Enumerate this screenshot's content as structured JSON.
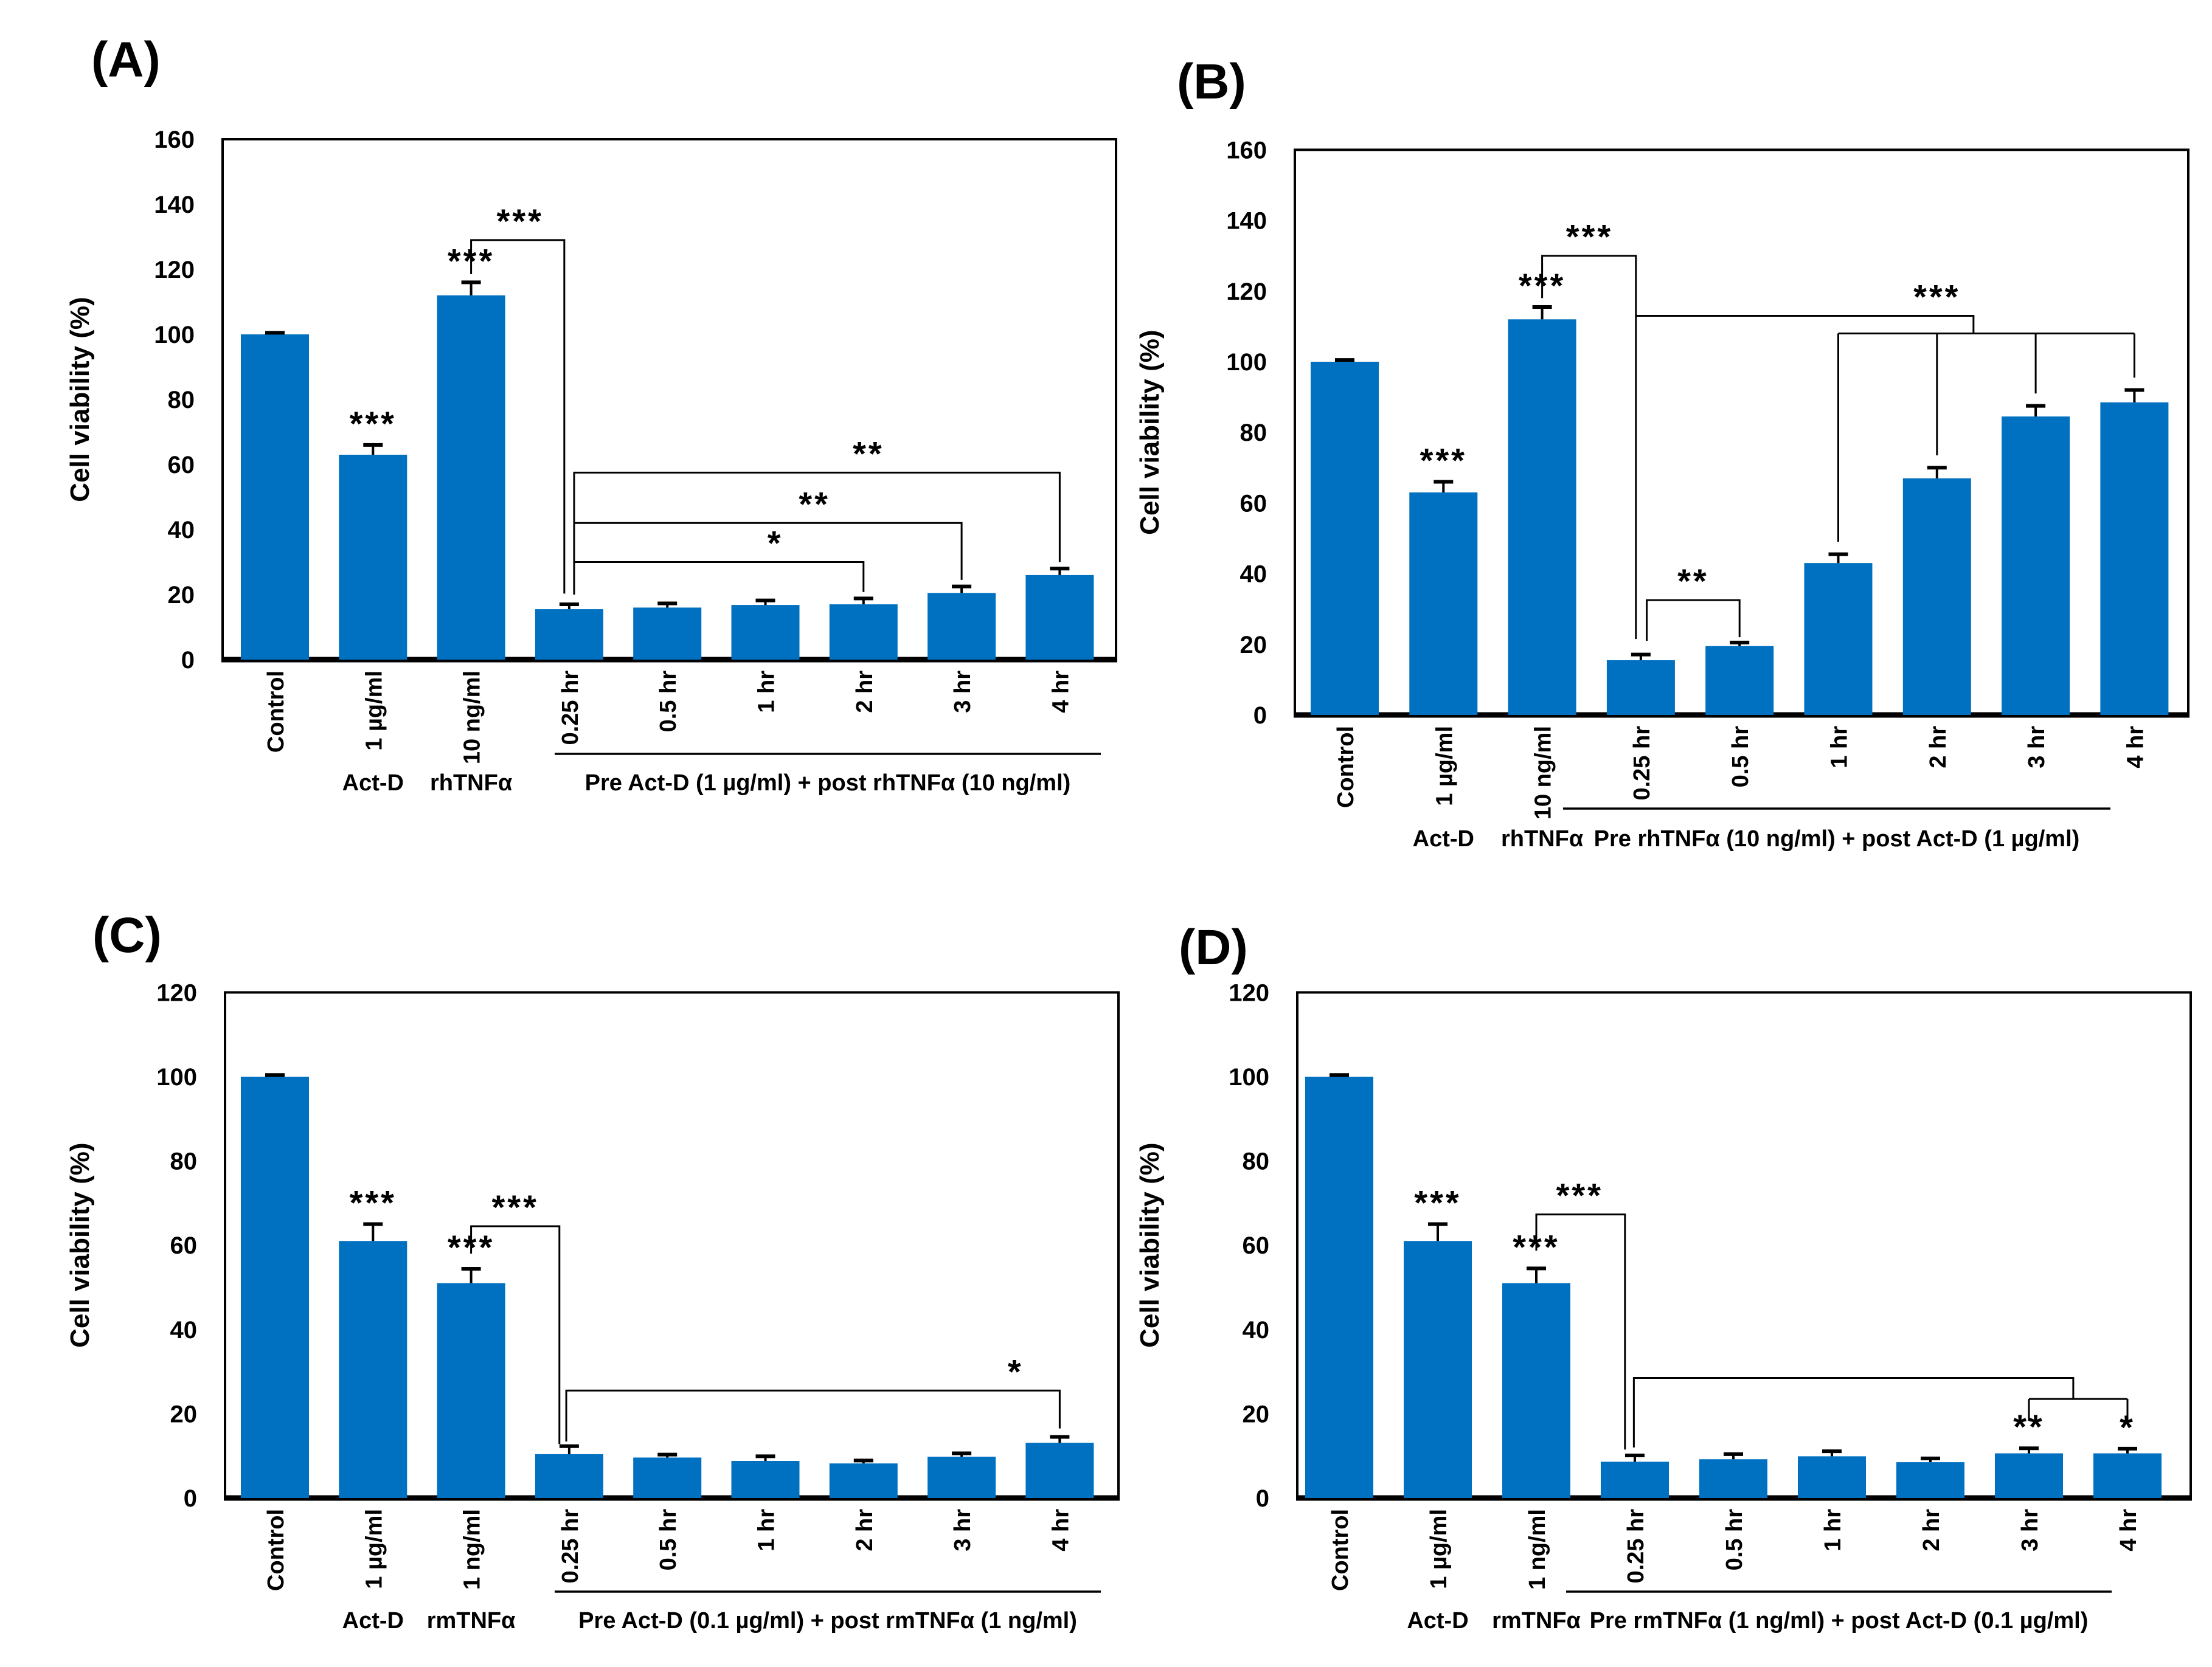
{
  "colors": {
    "bar": "#0070C0",
    "axis": "#000000",
    "background": "#FFFFFF"
  },
  "chart_data": [
    {
      "type": "bar",
      "panel_label": "(A)",
      "ylabel": "Cell viability (%)",
      "ylim": [
        0,
        160
      ],
      "yticks": [
        0,
        20,
        40,
        60,
        80,
        100,
        120,
        140,
        160
      ],
      "grid": false,
      "legend": "none",
      "categories": [
        "Control",
        "1 µg/ml",
        "10 ng/ml",
        "0.25 hr",
        "0.5 hr",
        "1 hr",
        "2 hr",
        "3 hr",
        "4 hr"
      ],
      "values": [
        100,
        63,
        112,
        15.5,
        16,
        16.8,
        17,
        20.5,
        26
      ],
      "errors": [
        0.5,
        3,
        4,
        1.5,
        1.3,
        1.4,
        1.8,
        2,
        2
      ],
      "bar_stars": [
        {
          "bar": 1,
          "text": "***"
        },
        {
          "bar": 2,
          "text": "***"
        }
      ],
      "treatment_labels": [
        {
          "bar": 1,
          "text": "Act-D"
        },
        {
          "bar": 2,
          "text": "rhTNFα"
        }
      ],
      "group_label": "Pre Act-D (1 µg/ml) + post rhTNFα (10 ng/ml)",
      "group_span_bars": [
        3,
        8
      ],
      "brackets": [
        {
          "lines": [
            [
              [
                2,
                118.5
              ],
              [
                2,
                129
              ],
              [
                2.95,
                129
              ],
              [
                2.95,
                20.3
              ]
            ]
          ],
          "label": "***",
          "label_at": [
            2.5,
            129
          ]
        },
        {
          "lines": [
            [
              [
                3.05,
                20
              ],
              [
                3.05,
                30
              ],
              [
                6,
                30
              ],
              [
                6,
                20.8
              ]
            ]
          ],
          "label": "*",
          "label_at": [
            5.1,
            30
          ]
        },
        {
          "lines": [
            [
              [
                3.05,
                20
              ],
              [
                3.05,
                42
              ],
              [
                7,
                42
              ],
              [
                7,
                24.5
              ]
            ]
          ],
          "label": "**",
          "label_at": [
            5.5,
            42
          ]
        },
        {
          "lines": [
            [
              [
                3.05,
                20
              ],
              [
                3.05,
                57.5
              ],
              [
                8,
                57.5
              ],
              [
                8,
                30
              ]
            ]
          ],
          "label": "**",
          "label_at": [
            6.05,
            57.5
          ]
        }
      ]
    },
    {
      "type": "bar",
      "panel_label": "(B)",
      "ylabel": "Cell viability (%)",
      "ylim": [
        0,
        160
      ],
      "yticks": [
        0,
        20,
        40,
        60,
        80,
        100,
        120,
        140,
        160
      ],
      "grid": false,
      "legend": "none",
      "categories": [
        "Control",
        "1 µg/ml",
        "10 ng/ml",
        "0.25 hr",
        "0.5 hr",
        "1 hr",
        "2 hr",
        "3 hr",
        "4 hr"
      ],
      "values": [
        100,
        63,
        112,
        15.5,
        19.5,
        43,
        67,
        84.5,
        88.5
      ],
      "errors": [
        0.5,
        3,
        3.5,
        1.6,
        1,
        2.5,
        3,
        3,
        3.5
      ],
      "bar_stars": [
        {
          "bar": 1,
          "text": "***"
        },
        {
          "bar": 2,
          "text": "***"
        }
      ],
      "treatment_labels": [
        {
          "bar": 1,
          "text": "Act-D"
        },
        {
          "bar": 2,
          "text": "rhTNFα"
        }
      ],
      "group_label": "Pre rhTNFα (10 ng/ml) + post Act-D (1 µg/ml)",
      "group_span_bars": [
        3,
        8
      ],
      "brackets": [
        {
          "lines": [
            [
              [
                2,
                118
              ],
              [
                2,
                130
              ],
              [
                2.95,
                130
              ],
              [
                2.95,
                21.5
              ]
            ]
          ],
          "label": "***",
          "label_at": [
            2.48,
            130
          ]
        },
        {
          "lines": [
            [
              [
                3.06,
                21
              ],
              [
                3.06,
                32.5
              ],
              [
                4,
                32.5
              ],
              [
                4,
                22
              ]
            ]
          ],
          "label": "**",
          "label_at": [
            3.53,
            32.5
          ]
        },
        {
          "lines": [
            [
              [
                2.95,
                113
              ],
              [
                6.37,
                113
              ],
              [
                6.37,
                108
              ]
            ],
            [
              [
                5,
                108
              ],
              [
                8,
                108
              ]
            ],
            [
              [
                5,
                108
              ],
              [
                5,
                49
              ]
            ],
            [
              [
                6,
                108
              ],
              [
                6,
                73.5
              ]
            ],
            [
              [
                7,
                108
              ],
              [
                7,
                91
              ]
            ],
            [
              [
                8,
                108
              ],
              [
                8,
                95.5
              ]
            ]
          ],
          "label": "***",
          "label_at": [
            6.0,
            113
          ]
        }
      ]
    },
    {
      "type": "bar",
      "panel_label": "(C)",
      "ylabel": "Cell viability (%)",
      "ylim": [
        0,
        120
      ],
      "yticks": [
        0,
        20,
        40,
        60,
        80,
        100,
        120
      ],
      "grid": false,
      "legend": "none",
      "categories": [
        "Control",
        "1 µg/ml",
        "1 ng/ml",
        "0.25 hr",
        "0.5 hr",
        "1 hr",
        "2 hr",
        "3 hr",
        "4 hr"
      ],
      "values": [
        100,
        61,
        51,
        10.4,
        9.6,
        8.8,
        8.2,
        9.8,
        13.1
      ],
      "errors": [
        0.4,
        4,
        3.4,
        1.9,
        0.7,
        1.1,
        0.7,
        0.8,
        1.4
      ],
      "bar_stars": [
        {
          "bar": 1,
          "text": "***"
        },
        {
          "bar": 2,
          "text": "***"
        }
      ],
      "treatment_labels": [
        {
          "bar": 1,
          "text": "Act-D"
        },
        {
          "bar": 2,
          "text": "rmTNFα"
        }
      ],
      "group_label": "Pre Act-D (0.1 µg/ml) + post rmTNFα (1 ng/ml)",
      "group_span_bars": [
        3,
        8
      ],
      "brackets": [
        {
          "lines": [
            [
              [
                2,
                58
              ],
              [
                2,
                64.5
              ],
              [
                2.9,
                64.5
              ],
              [
                2.9,
                12.8
              ]
            ]
          ],
          "label": "***",
          "label_at": [
            2.45,
            64.5
          ]
        },
        {
          "lines": [
            [
              [
                2.97,
                13.4
              ],
              [
                2.97,
                25.5
              ],
              [
                8,
                25.5
              ],
              [
                8,
                16.5
              ]
            ]
          ],
          "label": "*",
          "label_at": [
            7.55,
            25.5
          ]
        }
      ]
    },
    {
      "type": "bar",
      "panel_label": "(D)",
      "ylabel": "Cell viability (%)",
      "ylim": [
        0,
        120
      ],
      "yticks": [
        0,
        20,
        40,
        60,
        80,
        100,
        120
      ],
      "grid": false,
      "legend": "none",
      "categories": [
        "Control",
        "1 µg/ml",
        "1 ng/ml",
        "0.25 hr",
        "0.5 hr",
        "1 hr",
        "2 hr",
        "3 hr",
        "4 hr"
      ],
      "values": [
        100,
        61,
        51,
        8.6,
        9.2,
        9.9,
        8.5,
        10.6,
        10.6
      ],
      "errors": [
        0.4,
        4,
        3.5,
        1.5,
        1.2,
        1.2,
        0.9,
        1.2,
        1.1
      ],
      "bar_stars": [
        {
          "bar": 1,
          "text": "***"
        },
        {
          "bar": 2,
          "text": "***"
        },
        {
          "bar": 7,
          "text": "**"
        },
        {
          "bar": 8,
          "text": "*"
        }
      ],
      "treatment_labels": [
        {
          "bar": 1,
          "text": "Act-D"
        },
        {
          "bar": 2,
          "text": "rmTNFα"
        }
      ],
      "group_label": "Pre rmTNFα (1 ng/ml) + post Act-D (0.1 µg/ml)",
      "group_span_bars": [
        3,
        8
      ],
      "brackets": [
        {
          "lines": [
            [
              [
                2,
                58.7
              ],
              [
                2,
                67.3
              ],
              [
                2.9,
                67.3
              ],
              [
                2.9,
                11.5
              ]
            ]
          ],
          "label": "***",
          "label_at": [
            2.44,
            67.3
          ]
        },
        {
          "lines": [
            [
              [
                2.99,
                12
              ],
              [
                2.99,
                28.5
              ],
              [
                7.45,
                28.5
              ],
              [
                7.45,
                23.5
              ]
            ],
            [
              [
                7,
                23.5
              ],
              [
                8,
                23.5
              ]
            ],
            [
              [
                7,
                23.5
              ],
              [
                7,
                18.3
              ]
            ],
            [
              [
                8,
                23.5
              ],
              [
                8,
                18.3
              ]
            ]
          ]
        }
      ]
    }
  ]
}
